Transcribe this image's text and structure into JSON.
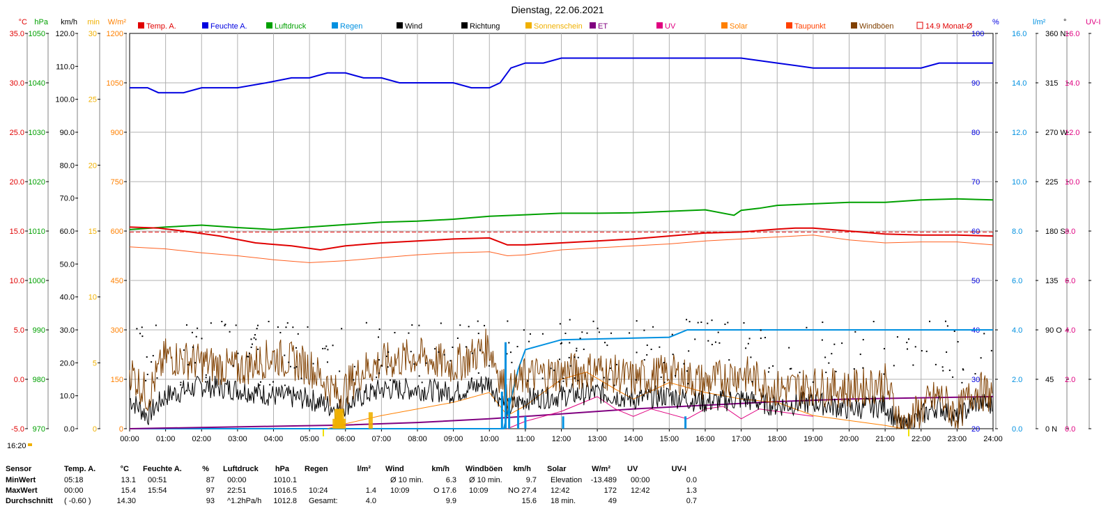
{
  "chart_data": {
    "type": "line",
    "title": "Dienstag, 22.06.2021",
    "time_label": "16:20",
    "x_ticks": [
      "00:00",
      "01:00",
      "02:00",
      "03:00",
      "04:00",
      "05:00",
      "06:00",
      "07:00",
      "08:00",
      "09:00",
      "10:00",
      "11:00",
      "12:00",
      "13:00",
      "14:00",
      "15:00",
      "16:00",
      "17:00",
      "18:00",
      "19:00",
      "20:00",
      "21:00",
      "22:00",
      "23:00",
      "24:00"
    ],
    "xlim": [
      0,
      24
    ],
    "legend": [
      {
        "label": "Temp. A.",
        "color": "#e00000"
      },
      {
        "label": "Feuchte A.",
        "color": "#0000e0"
      },
      {
        "label": "Luftdruck",
        "color": "#00a000"
      },
      {
        "label": "Regen",
        "color": "#0090e0"
      },
      {
        "label": "Wind",
        "color": "#000000"
      },
      {
        "label": "Richtung",
        "color": "#000000"
      },
      {
        "label": "Sonnenschein",
        "color": "#f0b000"
      },
      {
        "label": "ET",
        "color": "#800080"
      },
      {
        "label": "UV",
        "color": "#e00080"
      },
      {
        "label": "Solar",
        "color": "#ff8000"
      },
      {
        "label": "Taupunkt",
        "color": "#ff4000"
      },
      {
        "label": "Windböen",
        "color": "#804000"
      },
      {
        "label": "14.9 Monat-Ø",
        "color": "#e00000"
      }
    ],
    "axes_left": [
      {
        "unit": "°C",
        "color": "#e00000",
        "ticks": [
          "35.0",
          "30.0",
          "25.0",
          "20.0",
          "15.0",
          "10.0",
          "5.0",
          "0.0",
          "-5.0"
        ],
        "range": [
          -5,
          35
        ]
      },
      {
        "unit": "hPa",
        "color": "#00a000",
        "ticks": [
          "1050",
          "1040",
          "1030",
          "1020",
          "1010",
          "1000",
          "990",
          "980",
          "970"
        ],
        "range": [
          970,
          1050
        ]
      },
      {
        "unit": "km/h",
        "color": "#000000",
        "ticks": [
          "120.0",
          "110.0",
          "100.0",
          "90.0",
          "80.0",
          "70.0",
          "60.0",
          "50.0",
          "40.0",
          "30.0",
          "20.0",
          "10.0",
          "0.0"
        ],
        "range": [
          0,
          120
        ]
      },
      {
        "unit": "min",
        "color": "#f0b000",
        "ticks": [
          "30",
          "25",
          "20",
          "15",
          "10",
          "5",
          "0"
        ],
        "range": [
          0,
          30
        ]
      },
      {
        "unit": "W/m²",
        "color": "#ff8000",
        "ticks": [
          "1200",
          "1050",
          "900",
          "750",
          "600",
          "450",
          "300",
          "150",
          "0"
        ],
        "range": [
          0,
          1200
        ]
      }
    ],
    "axes_right": [
      {
        "unit": "%",
        "color": "#0000e0",
        "ticks": [
          "100",
          "90",
          "80",
          "70",
          "60",
          "50",
          "40",
          "30",
          "20"
        ],
        "range": [
          20,
          100
        ]
      },
      {
        "unit": "l/m²",
        "color": "#0090e0",
        "ticks": [
          "16.0",
          "14.0",
          "12.0",
          "10.0",
          "8.0",
          "6.0",
          "4.0",
          "2.0",
          "0.0"
        ],
        "range": [
          0,
          16
        ]
      },
      {
        "unit": "°",
        "color": "#000000",
        "ticks": [
          "360 N",
          "315",
          "270 W",
          "225",
          "180 S",
          "135",
          "90 O",
          "45",
          "0 N"
        ],
        "range": [
          0,
          360
        ]
      },
      {
        "unit": "UV-I",
        "color": "#e00080",
        "ticks": [
          "16.0",
          "14.0",
          "12.0",
          "10.0",
          "8.0",
          "6.0",
          "4.0",
          "2.0",
          "0.0"
        ],
        "range": [
          0,
          16
        ]
      }
    ],
    "series": [
      {
        "name": "Feuchte A.",
        "axis": "%",
        "color": "#0000e0",
        "x": [
          0,
          0.5,
          0.8,
          1.5,
          2.0,
          2.5,
          3.0,
          3.8,
          4.5,
          5.0,
          5.5,
          6.0,
          6.5,
          7.0,
          7.5,
          8.0,
          8.5,
          9.0,
          9.5,
          10.0,
          10.3,
          10.6,
          11.0,
          11.5,
          12.0,
          13.0,
          14.0,
          15.0,
          16.0,
          17.0,
          18.0,
          19.0,
          20.0,
          20.5,
          21.0,
          22.0,
          22.5,
          23.0,
          24.0
        ],
        "y": [
          89,
          89,
          88,
          88,
          89,
          89,
          89,
          90,
          91,
          91,
          92,
          92,
          91,
          91,
          90,
          90,
          90,
          90,
          89,
          89,
          90,
          93,
          94,
          94,
          95,
          95,
          95,
          95,
          95,
          95,
          94,
          93,
          93,
          93,
          93,
          93,
          94,
          94,
          94
        ]
      },
      {
        "name": "Luftdruck",
        "axis": "hPa",
        "color": "#00a000",
        "x": [
          0,
          1,
          2,
          3,
          4,
          5,
          6,
          7,
          8,
          9,
          10,
          11,
          12,
          13,
          14,
          15,
          16,
          16.8,
          17,
          17.5,
          18,
          19,
          20,
          21,
          22,
          23,
          24
        ],
        "y": [
          1010.3,
          1010.8,
          1011.2,
          1010.7,
          1010.3,
          1010.8,
          1011.3,
          1011.8,
          1012.0,
          1012.4,
          1013.0,
          1013.3,
          1013.6,
          1013.6,
          1013.7,
          1014.0,
          1014.3,
          1013.2,
          1014.2,
          1014.6,
          1015.2,
          1015.5,
          1015.8,
          1015.8,
          1016.3,
          1016.5,
          1016.3
        ]
      },
      {
        "name": "Temp. A.",
        "axis": "°C",
        "color": "#e00000",
        "x": [
          0,
          0.8,
          1.5,
          2.5,
          3.5,
          4.5,
          5.3,
          6,
          7,
          8,
          9,
          10,
          10.5,
          11,
          12,
          13,
          14,
          15,
          16,
          17,
          18,
          18.5,
          19,
          20,
          21,
          22,
          23,
          24
        ],
        "y": [
          15.4,
          15.3,
          15.0,
          14.5,
          13.8,
          13.5,
          13.1,
          13.5,
          13.8,
          14.0,
          14.2,
          14.3,
          13.6,
          13.6,
          13.8,
          14.0,
          14.2,
          14.5,
          14.8,
          14.9,
          15.2,
          15.3,
          15.3,
          15.0,
          14.7,
          14.6,
          14.6,
          14.5
        ]
      },
      {
        "name": "Taupunkt",
        "axis": "°C",
        "color": "#ff6020",
        "x": [
          0,
          1,
          2,
          3,
          4,
          5,
          6,
          7,
          8,
          9,
          10,
          10.5,
          11,
          12,
          13,
          14,
          15,
          16,
          17,
          18,
          19,
          20,
          21,
          22,
          23,
          24
        ],
        "y": [
          13.4,
          13.2,
          12.8,
          12.5,
          12.1,
          11.8,
          12.0,
          12.3,
          12.6,
          12.8,
          12.9,
          12.5,
          12.6,
          13.1,
          13.3,
          13.5,
          13.7,
          14.0,
          14.2,
          14.4,
          14.6,
          14.1,
          13.8,
          13.9,
          13.9,
          13.6
        ]
      },
      {
        "name": "Regen",
        "axis": "l/m²",
        "color": "#0090e0",
        "x": [
          0,
          10.4,
          10.8,
          11.0,
          11.5,
          12.0,
          15.0,
          15.5,
          16.0,
          24.0
        ],
        "y": [
          0,
          0,
          2.4,
          3.2,
          3.4,
          3.6,
          3.7,
          4.0,
          4.0,
          4.0
        ]
      },
      {
        "name": "ET",
        "axis": "l/m²",
        "color": "#800080",
        "x": [
          0,
          2,
          4,
          6,
          8,
          10,
          12,
          14,
          16,
          18,
          20,
          22,
          24
        ],
        "y": [
          0,
          0.05,
          0.1,
          0.15,
          0.25,
          0.4,
          0.6,
          0.8,
          0.95,
          1.1,
          1.2,
          1.25,
          1.3
        ]
      },
      {
        "name": "Solar",
        "axis": "W/m²",
        "color": "#ff8000",
        "x": [
          5.5,
          6,
          7,
          8,
          9,
          10,
          10.5,
          11,
          11.5,
          12,
          12.7,
          13.5,
          14,
          15,
          16,
          17,
          18,
          19,
          20,
          21,
          21.5
        ],
        "y": [
          0,
          15,
          40,
          60,
          80,
          110,
          40,
          70,
          110,
          150,
          172,
          120,
          90,
          140,
          110,
          90,
          80,
          40,
          25,
          10,
          0
        ]
      },
      {
        "name": "UV",
        "axis": "UV-I",
        "color": "#e00080",
        "x": [
          10.5,
          11,
          11.5,
          12,
          12.5,
          13,
          13.5,
          14,
          14.5,
          15,
          15.5,
          16,
          16.5,
          17,
          17.5,
          18,
          18.5,
          19
        ],
        "y": [
          0,
          0.3,
          0.5,
          0.7,
          1.0,
          1.3,
          0.8,
          0.5,
          0.8,
          0.6,
          0.4,
          0.8,
          0.9,
          0.4,
          0.8,
          0.7,
          0.6,
          0.5
        ]
      },
      {
        "name": "Wind",
        "axis": "km/h",
        "color": "#000000",
        "x": [
          0,
          0.5,
          1,
          2,
          3,
          4,
          5,
          5.8,
          6.5,
          7,
          8,
          9,
          10,
          10.5,
          11,
          12,
          13,
          14,
          15,
          16,
          17,
          18,
          19,
          20,
          21,
          21.5,
          22,
          22.5,
          23,
          23.5,
          24
        ],
        "y": [
          9,
          4,
          10,
          13,
          12,
          10,
          9,
          6,
          10,
          12,
          12,
          11,
          14,
          6,
          9,
          10,
          11,
          9,
          10,
          8,
          9,
          7,
          8,
          6,
          7,
          0,
          4,
          7,
          3,
          8,
          7
        ]
      },
      {
        "name": "Windböen",
        "axis": "km/h",
        "color": "#804000",
        "x": [
          0,
          0.5,
          1,
          2,
          3,
          4,
          5,
          5.8,
          6.5,
          7,
          8,
          9,
          10,
          10.5,
          11,
          12,
          13,
          14,
          15,
          16,
          17,
          18,
          19,
          20,
          21,
          21.5,
          22,
          22.5,
          23,
          23.5,
          24
        ],
        "y": [
          18,
          10,
          22,
          20,
          18,
          22,
          19,
          10,
          18,
          20,
          22,
          19,
          25,
          10,
          16,
          17,
          18,
          15,
          17,
          14,
          17,
          12,
          13,
          12,
          14,
          0,
          6,
          10,
          4,
          12,
          10
        ]
      },
      {
        "name": "Sonnenschein",
        "axis": "min",
        "color": "#f0b000",
        "x": [
          5.7,
          5.75,
          5.8,
          5.85,
          5.9,
          5.95,
          6.7
        ],
        "y": [
          0.3,
          0.6,
          0.6,
          0.6,
          0.6,
          0.3,
          0.5
        ]
      }
    ],
    "month_avg_temp": 14.9
  },
  "table": {
    "columns": [
      {
        "title": "Sensor",
        "rows": [
          "MinWert",
          "MaxWert",
          "Durchschnitt"
        ]
      },
      {
        "title": "Temp. A.",
        "unit": "°C",
        "rows": [
          [
            "05:18",
            "13.1"
          ],
          [
            "00:00",
            "15.4"
          ],
          [
            "( -0.60 )",
            "14.30"
          ]
        ]
      },
      {
        "title": "Feuchte A.",
        "unit": "%",
        "rows": [
          [
            "00:51",
            "87"
          ],
          [
            "15:54",
            "97"
          ],
          [
            "",
            "93"
          ]
        ]
      },
      {
        "title": "Luftdruck",
        "unit": "hPa",
        "rows": [
          [
            "00:00",
            "1010.1"
          ],
          [
            "22:51",
            "1016.5"
          ],
          [
            "^1.2hPa/h",
            "1012.8"
          ]
        ]
      },
      {
        "title": "Regen",
        "unit": "l/m²",
        "rows": [
          [
            "",
            ""
          ],
          [
            "10:24",
            "1.4"
          ],
          [
            "Gesamt:",
            "4.0"
          ]
        ]
      },
      {
        "title": "Wind",
        "unit": "km/h",
        "rows": [
          [
            "Ø 10 min.",
            "6.3"
          ],
          [
            "10:09",
            "O 17.6"
          ],
          [
            "",
            "9.9"
          ]
        ]
      },
      {
        "title": "Windböen",
        "unit": "km/h",
        "rows": [
          [
            "Ø 10 min.",
            "9.7"
          ],
          [
            "10:09",
            "NO 27.4"
          ],
          [
            "",
            "15.6"
          ]
        ]
      },
      {
        "title": "Solar",
        "unit": "W/m²",
        "rows": [
          [
            "Elevation",
            "-13.489"
          ],
          [
            "12:42",
            "172"
          ],
          [
            "18 min.",
            "49"
          ]
        ]
      },
      {
        "title": "UV",
        "unit": "UV-I",
        "rows": [
          [
            "00:00",
            "0.0"
          ],
          [
            "12:42",
            "1.3"
          ],
          [
            "",
            "0.7"
          ]
        ]
      }
    ]
  }
}
